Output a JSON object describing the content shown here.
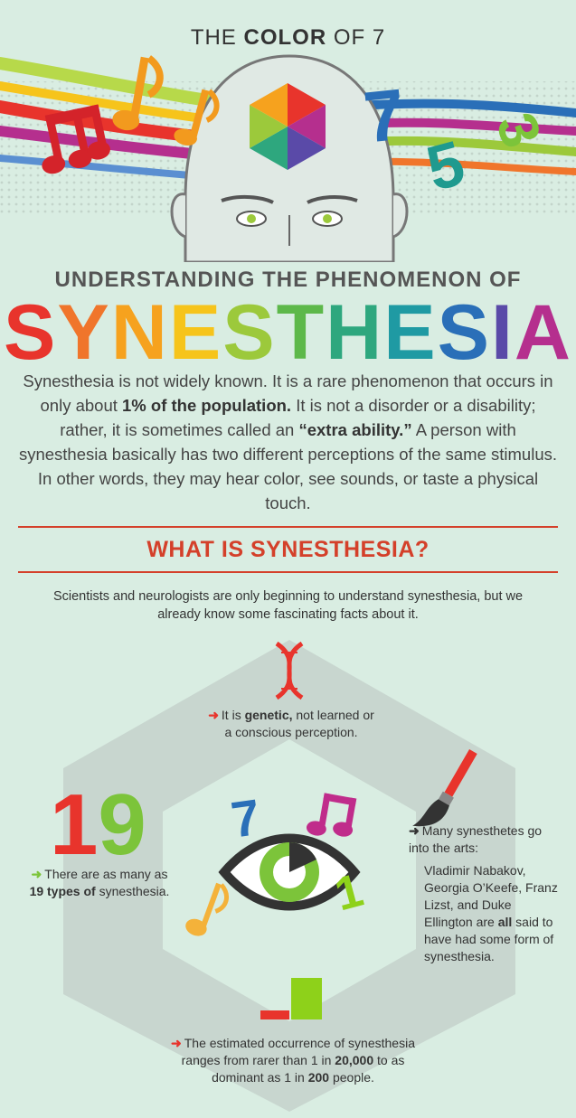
{
  "brand": {
    "pre": "THE ",
    "bold": "COLOR",
    "post": " OF 7"
  },
  "subtitle": "UNDERSTANDING THE PHENOMENON OF",
  "title_letters": [
    {
      "ch": "S",
      "color": "#e8342c"
    },
    {
      "ch": "Y",
      "color": "#f0752b"
    },
    {
      "ch": "N",
      "color": "#f6a21e"
    },
    {
      "ch": "E",
      "color": "#f6c41b"
    },
    {
      "ch": "S",
      "color": "#9cc93b"
    },
    {
      "ch": "T",
      "color": "#5db84a"
    },
    {
      "ch": "H",
      "color": "#2ea77e"
    },
    {
      "ch": "E",
      "color": "#1f9aa3"
    },
    {
      "ch": "S",
      "color": "#2a6fb8"
    },
    {
      "ch": "I",
      "color": "#5a4aa8"
    },
    {
      "ch": "A",
      "color": "#b52f8e"
    }
  ],
  "intro": {
    "p1": "Synesthesia is not widely known. It is a rare phenomenon that occurs in only about ",
    "b1": "1% of the population.",
    "p2": " It is not a disorder or a disability; rather, it is sometimes called an ",
    "b2": "“extra ability.”",
    "p3": " A person with synesthesia basically has two different perceptions of the same stimulus. In other words, they may hear color, see sounds, or taste a physical touch."
  },
  "section_title": "WHAT IS SYNESTHESIA?",
  "lead": "Scientists and neurologists are only beginning to understand synesthesia, but we already know some fascinating facts about it.",
  "facts": {
    "genetic": {
      "pre": "It is ",
      "bold": "genetic,",
      "post": " not learned or a conscious perception."
    },
    "types": {
      "pre": "There are as many as ",
      "bold": "19 types of",
      "post": " synesthesia."
    },
    "arts": {
      "line1": "Many synesthetes go into the arts:",
      "pre": "Vladimir Nabakov, Georgia O’Keefe, Franz Lizst, and Duke Ellington are ",
      "bold": "all",
      "post": " said to have had some form of synesthesia."
    },
    "occurrence": {
      "pre": "The estimated occurrence of synesthesia ranges from rarer than 1 in ",
      "b1": "20,000",
      "mid": " to as dominant as 1 in ",
      "b2": "200",
      "post": " people."
    }
  },
  "big_number": "19",
  "float_numbers": {
    "seven_top": "7",
    "five": "5",
    "three": "3",
    "seven_eye": "7",
    "one": "1"
  },
  "colors": {
    "accent_red": "#d4402a",
    "green_arrow": "#5db84a",
    "bg": "#d9ede2"
  }
}
